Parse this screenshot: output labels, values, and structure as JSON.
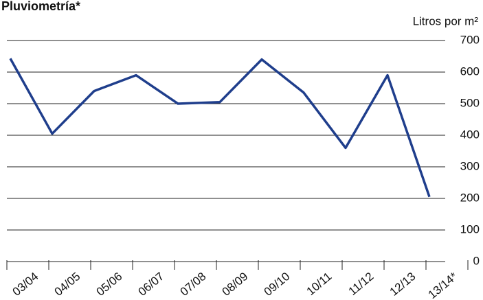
{
  "chart_data": {
    "type": "line",
    "title": "Pluviometría*",
    "y_axis_label": "Litros por m²",
    "categories": [
      "03/04",
      "04/05",
      "05/06",
      "06/07",
      "07/08",
      "08/09",
      "09/10",
      "10/11",
      "11/12",
      "12/13",
      "13/14*"
    ],
    "series": [
      {
        "name": "Pluviometría",
        "color": "#1f3e8c",
        "values": [
          643,
          405,
          540,
          590,
          500,
          505,
          640,
          535,
          360,
          590,
          205
        ]
      }
    ],
    "ylim": [
      0,
      700
    ],
    "yticks": [
      0,
      100,
      200,
      300,
      400,
      500,
      600,
      700
    ],
    "grid": true
  }
}
